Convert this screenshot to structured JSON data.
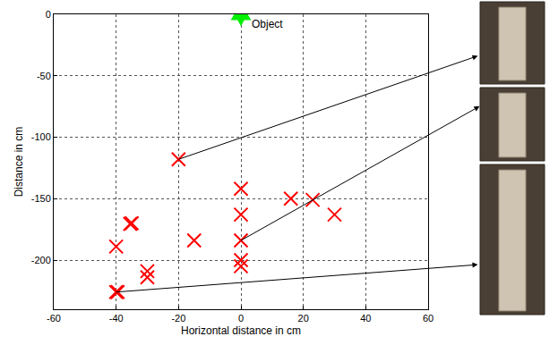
{
  "chart_data": {
    "type": "scatter",
    "x_label": "Horizontal distance in cm",
    "y_label": "Distance in cm",
    "xlim": [
      -60,
      60
    ],
    "xticks": [
      -60,
      -40,
      -20,
      0,
      20,
      40,
      60
    ],
    "ylim": [
      -240,
      0
    ],
    "yticks": [
      -200,
      -150,
      -100,
      -50,
      0
    ],
    "grid": true,
    "series": [
      {
        "color": "#00ee00",
        "marker": "hexagram",
        "x": [
          0
        ],
        "y": [
          0
        ]
      },
      {
        "color": "#ff0000",
        "marker": "x",
        "x": [
          -20,
          0,
          16,
          23,
          0,
          30,
          -35,
          -35.5,
          -40,
          -15,
          0,
          0,
          0,
          -30,
          -30,
          -40,
          -39.5
        ],
        "y": [
          -118,
          -142,
          -150,
          -151,
          -163,
          -163,
          -170,
          -170.5,
          -189,
          -184,
          -184,
          -200,
          -205,
          -209,
          -214,
          -226,
          -226
        ]
      }
    ],
    "annotations": [
      {
        "text": "Object",
        "x": 0,
        "y": 0
      }
    ],
    "arrows": [
      {
        "x": -20,
        "y": -118
      },
      {
        "x": 0,
        "y": -184
      },
      {
        "x": -40,
        "y": -226
      }
    ]
  }
}
